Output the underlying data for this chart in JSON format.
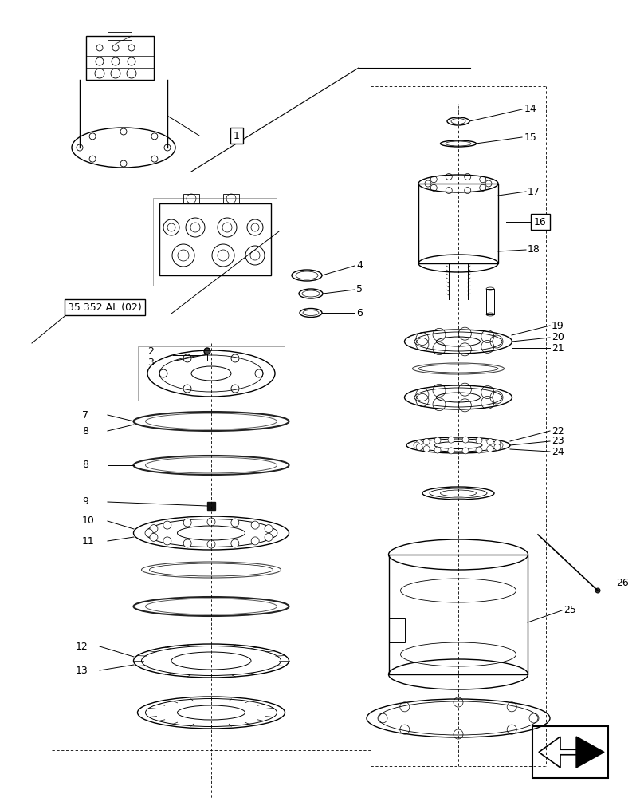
{
  "bg_color": "#ffffff",
  "line_color": "#000000",
  "label_color": "#000000",
  "fig_width": 8.08,
  "fig_height": 10.0,
  "dpi": 100,
  "parts": [
    {
      "id": "1",
      "label": "1"
    },
    {
      "id": "2",
      "label": "2"
    },
    {
      "id": "3",
      "label": "3"
    },
    {
      "id": "4",
      "label": "4"
    },
    {
      "id": "5",
      "label": "5"
    },
    {
      "id": "6",
      "label": "6"
    },
    {
      "id": "7",
      "label": "7"
    },
    {
      "id": "8a",
      "label": "8"
    },
    {
      "id": "8b",
      "label": "8"
    },
    {
      "id": "9",
      "label": "9"
    },
    {
      "id": "10",
      "label": "10"
    },
    {
      "id": "11",
      "label": "11"
    },
    {
      "id": "12",
      "label": "12"
    },
    {
      "id": "13",
      "label": "13"
    },
    {
      "id": "14",
      "label": "14"
    },
    {
      "id": "15",
      "label": "15"
    },
    {
      "id": "16",
      "label": "16"
    },
    {
      "id": "17",
      "label": "17"
    },
    {
      "id": "18",
      "label": "18"
    },
    {
      "id": "19",
      "label": "19"
    },
    {
      "id": "20",
      "label": "20"
    },
    {
      "id": "21",
      "label": "21"
    },
    {
      "id": "22",
      "label": "22"
    },
    {
      "id": "23",
      "label": "23"
    },
    {
      "id": "24",
      "label": "24"
    },
    {
      "id": "25",
      "label": "25"
    },
    {
      "id": "26",
      "label": "26"
    }
  ],
  "ref_label": "35.352.AL (02)"
}
